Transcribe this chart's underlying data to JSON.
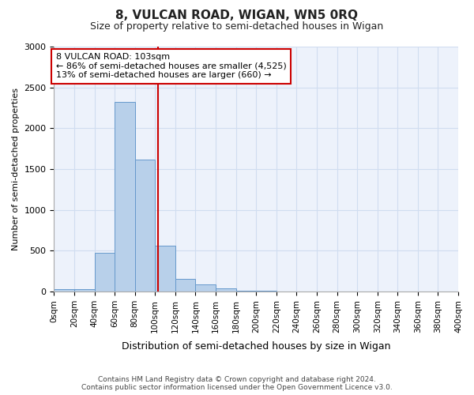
{
  "title": "8, VULCAN ROAD, WIGAN, WN5 0RQ",
  "subtitle": "Size of property relative to semi-detached houses in Wigan",
  "xlabel": "Distribution of semi-detached houses by size in Wigan",
  "ylabel": "Number of semi-detached properties",
  "property_size": 103,
  "annotation_line1": "8 VULCAN ROAD: 103sqm",
  "annotation_line2": "← 86% of semi-detached houses are smaller (4,525)",
  "annotation_line3": "13% of semi-detached houses are larger (660) →",
  "footer_line1": "Contains HM Land Registry data © Crown copyright and database right 2024.",
  "footer_line2": "Contains public sector information licensed under the Open Government Licence v3.0.",
  "bar_edges": [
    0,
    20,
    40,
    60,
    80,
    100,
    120,
    140,
    160,
    180,
    200,
    220,
    240,
    260,
    280,
    300,
    320,
    340,
    360,
    380,
    400
  ],
  "bar_heights": [
    30,
    30,
    480,
    2320,
    1620,
    560,
    155,
    85,
    40,
    15,
    8,
    5,
    2,
    0,
    0,
    0,
    0,
    0,
    0,
    0
  ],
  "bar_color": "#b8d0ea",
  "bar_edgecolor": "#6699cc",
  "redline_color": "#cc0000",
  "grid_color": "#d0ddf0",
  "bg_color": "#edf2fb",
  "ylim": [
    0,
    3000
  ],
  "yticks": [
    0,
    500,
    1000,
    1500,
    2000,
    2500,
    3000
  ]
}
